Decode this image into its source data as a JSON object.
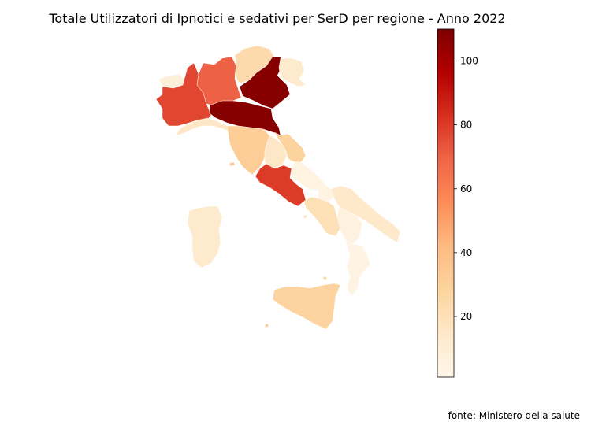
{
  "title": "Totale Utilizzatori di Ipnotici e sedativi per SerD per regione - Anno 2022",
  "source": "fonte: Ministero della salute",
  "colorbar": {
    "colormap": "OrRd",
    "range": [
      1,
      110
    ],
    "ticks": [
      "20",
      "40",
      "60",
      "80",
      "100"
    ]
  },
  "regions": [
    {
      "key": "valle-d-aosta",
      "value": 8
    },
    {
      "key": "piemonte",
      "value": 77
    },
    {
      "key": "liguria",
      "value": 15
    },
    {
      "key": "lombardia",
      "value": 70
    },
    {
      "key": "trentino-alto-adige",
      "value": 24
    },
    {
      "key": "veneto",
      "value": 108
    },
    {
      "key": "friuli-venezia-giulia",
      "value": 13
    },
    {
      "key": "emilia-romagna",
      "value": 108
    },
    {
      "key": "toscana",
      "value": 32
    },
    {
      "key": "umbria",
      "value": 15
    },
    {
      "key": "marche",
      "value": 29
    },
    {
      "key": "lazio",
      "value": 80
    },
    {
      "key": "abruzzo",
      "value": 5
    },
    {
      "key": "molise",
      "value": 5
    },
    {
      "key": "campania",
      "value": 20
    },
    {
      "key": "puglia",
      "value": 14
    },
    {
      "key": "basilicata",
      "value": 6
    },
    {
      "key": "calabria",
      "value": 4
    },
    {
      "key": "sicilia",
      "value": 28
    },
    {
      "key": "sardegna",
      "value": 13
    }
  ]
}
